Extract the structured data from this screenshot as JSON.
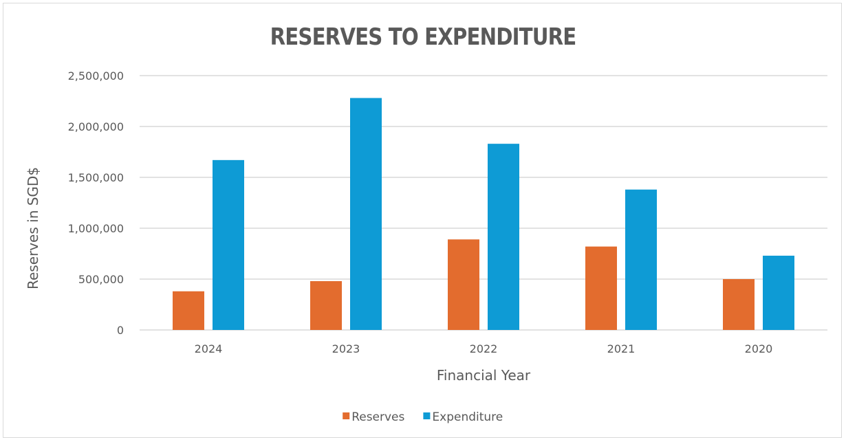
{
  "chart_data": {
    "type": "bar",
    "title": "RESERVES TO EXPENDITURE",
    "xlabel": "Financial Year",
    "ylabel": "Reserves in SGD$",
    "categories": [
      "2024",
      "2023",
      "2022",
      "2021",
      "2020"
    ],
    "series": [
      {
        "name": "Reserves",
        "color": "#e36c2e",
        "values": [
          380000,
          480000,
          890000,
          820000,
          500000
        ]
      },
      {
        "name": "Expenditure",
        "color": "#0e9bd5",
        "values": [
          1670000,
          2280000,
          1830000,
          1380000,
          730000
        ]
      }
    ],
    "ylim": [
      0,
      2500000
    ],
    "yticks": [
      0,
      500000,
      1000000,
      1500000,
      2000000,
      2500000
    ],
    "ytick_labels": [
      "0",
      "500,000",
      "1,000,000",
      "1,500,000",
      "2,000,000",
      "2,500,000"
    ],
    "grid": true,
    "legend_position": "bottom"
  }
}
